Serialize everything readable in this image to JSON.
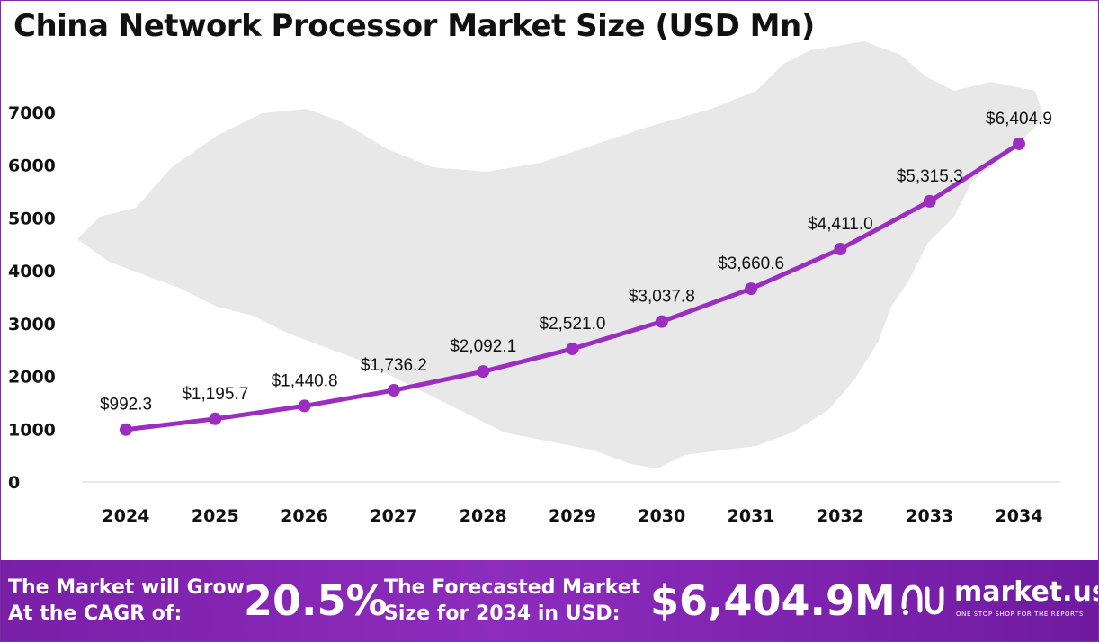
{
  "chart_data": {
    "type": "line",
    "title": "China Network Processor Market Size (USD Mn)",
    "categories": [
      "2024",
      "2025",
      "2026",
      "2027",
      "2028",
      "2029",
      "2030",
      "2031",
      "2032",
      "2033",
      "2034"
    ],
    "values": [
      992.3,
      1195.7,
      1440.8,
      1736.2,
      2092.1,
      2521.0,
      3037.8,
      3660.6,
      4411.0,
      5315.3,
      6404.9
    ],
    "data_labels": [
      "$992.3",
      "$1,195.7",
      "$1,440.8",
      "$1,736.2",
      "$2,092.1",
      "$2,521.0",
      "$3,037.8",
      "$3,660.6",
      "$4,411.0",
      "$5,315.3",
      "$6,404.9"
    ],
    "y_ticks": [
      "0",
      "1000",
      "2000",
      "3000",
      "4000",
      "5000",
      "6000",
      "7000"
    ],
    "ylim": [
      0,
      7000
    ],
    "xlabel": "",
    "ylabel": "",
    "line_color": "#9b2dc0",
    "grid": false,
    "legend": "none",
    "background_watermark": "map of China"
  },
  "footer": {
    "cagr_text_line1": "The Market will Grow",
    "cagr_text_line2": "At the CAGR of:",
    "cagr_value": "20.5%",
    "forecast_text_line1": "The Forecasted Market",
    "forecast_text_line2": "Size for 2034 in USD:",
    "forecast_value": "$6,404.9M",
    "brand_name": "market.us",
    "brand_tagline": "ONE STOP SHOP FOR THE REPORTS",
    "background_color": "#8d2cbd"
  }
}
